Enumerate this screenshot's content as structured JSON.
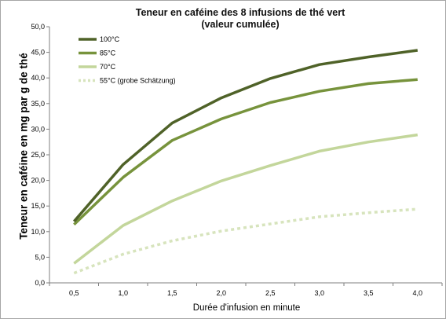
{
  "chart_data": {
    "type": "line",
    "title_line1": "Teneur en caféine  des 8 infusions de thé vert",
    "title_line2": "(valeur cumulée)",
    "xlabel": "Durée d'infusion en minute",
    "ylabel": "Teneur en caféine en mg par g de thé",
    "x": [
      0.5,
      1.0,
      1.5,
      2.0,
      2.5,
      3.0,
      3.5,
      4.0
    ],
    "x_tick_labels": [
      "0,5",
      "1,0",
      "1,5",
      "2,0",
      "2,5",
      "3,0",
      "3,5",
      "4,0"
    ],
    "y_tick_values": [
      0,
      5,
      10,
      15,
      20,
      25,
      30,
      35,
      40,
      45,
      50
    ],
    "y_tick_labels": [
      "0,0",
      "5,0",
      "10,0",
      "15,0",
      "20,0",
      "25,0",
      "30,0",
      "35,0",
      "40,0",
      "45,0",
      "50,0"
    ],
    "ylim": [
      0,
      50
    ],
    "grid": false,
    "legend_position": "top-left",
    "series": [
      {
        "name": "100°C",
        "values": [
          12.0,
          23.1,
          31.2,
          36.1,
          39.9,
          42.6,
          44.1,
          45.4
        ],
        "color": "#4f6228",
        "dashed": false
      },
      {
        "name": "85°C",
        "values": [
          11.4,
          20.6,
          27.8,
          32.0,
          35.2,
          37.4,
          38.9,
          39.7
        ],
        "color": "#77933c",
        "dashed": false
      },
      {
        "name": "70°C",
        "values": [
          3.8,
          11.2,
          16.0,
          19.9,
          22.9,
          25.7,
          27.5,
          28.9
        ],
        "color": "#c3d69b",
        "dashed": false
      },
      {
        "name": "55°C (grobe Schätzung)",
        "values": [
          1.9,
          5.6,
          8.2,
          10.1,
          11.5,
          12.9,
          13.7,
          14.4
        ],
        "color": "#d7e4bd",
        "dashed": true
      }
    ]
  }
}
